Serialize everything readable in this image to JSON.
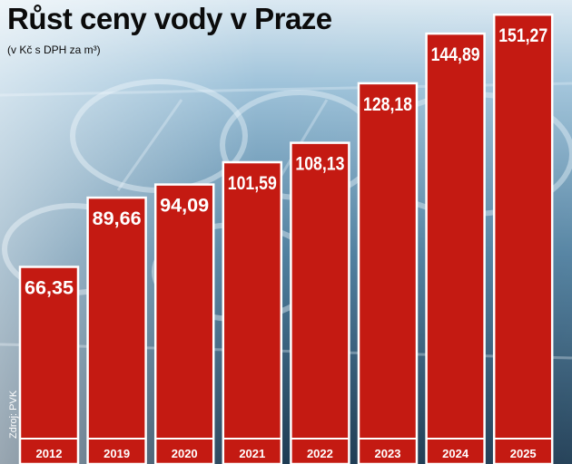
{
  "chart_data": {
    "type": "bar",
    "title": "Růst ceny vody v Praze",
    "subtitle": "(v Kč s DPH za m³)",
    "xlabel": "",
    "ylabel": "",
    "categories": [
      "2012",
      "2019",
      "2020",
      "2021",
      "2022",
      "2023",
      "2024",
      "2025"
    ],
    "values": [
      66.35,
      89.66,
      94.09,
      101.59,
      108.13,
      128.18,
      144.89,
      151.27
    ],
    "value_labels": [
      "66,35",
      "89,66",
      "94,09",
      "101,59",
      "108,13",
      "128,18",
      "144,89",
      "151,27"
    ],
    "ylim": [
      0,
      155
    ],
    "grid": false,
    "legend": "none"
  },
  "source": "Zdroj: PVK",
  "colors": {
    "bar": "#c41a12",
    "bar_edge": "#ffffff",
    "background_top": "#cfe2ee",
    "background_bottom": "#1d3d55"
  }
}
